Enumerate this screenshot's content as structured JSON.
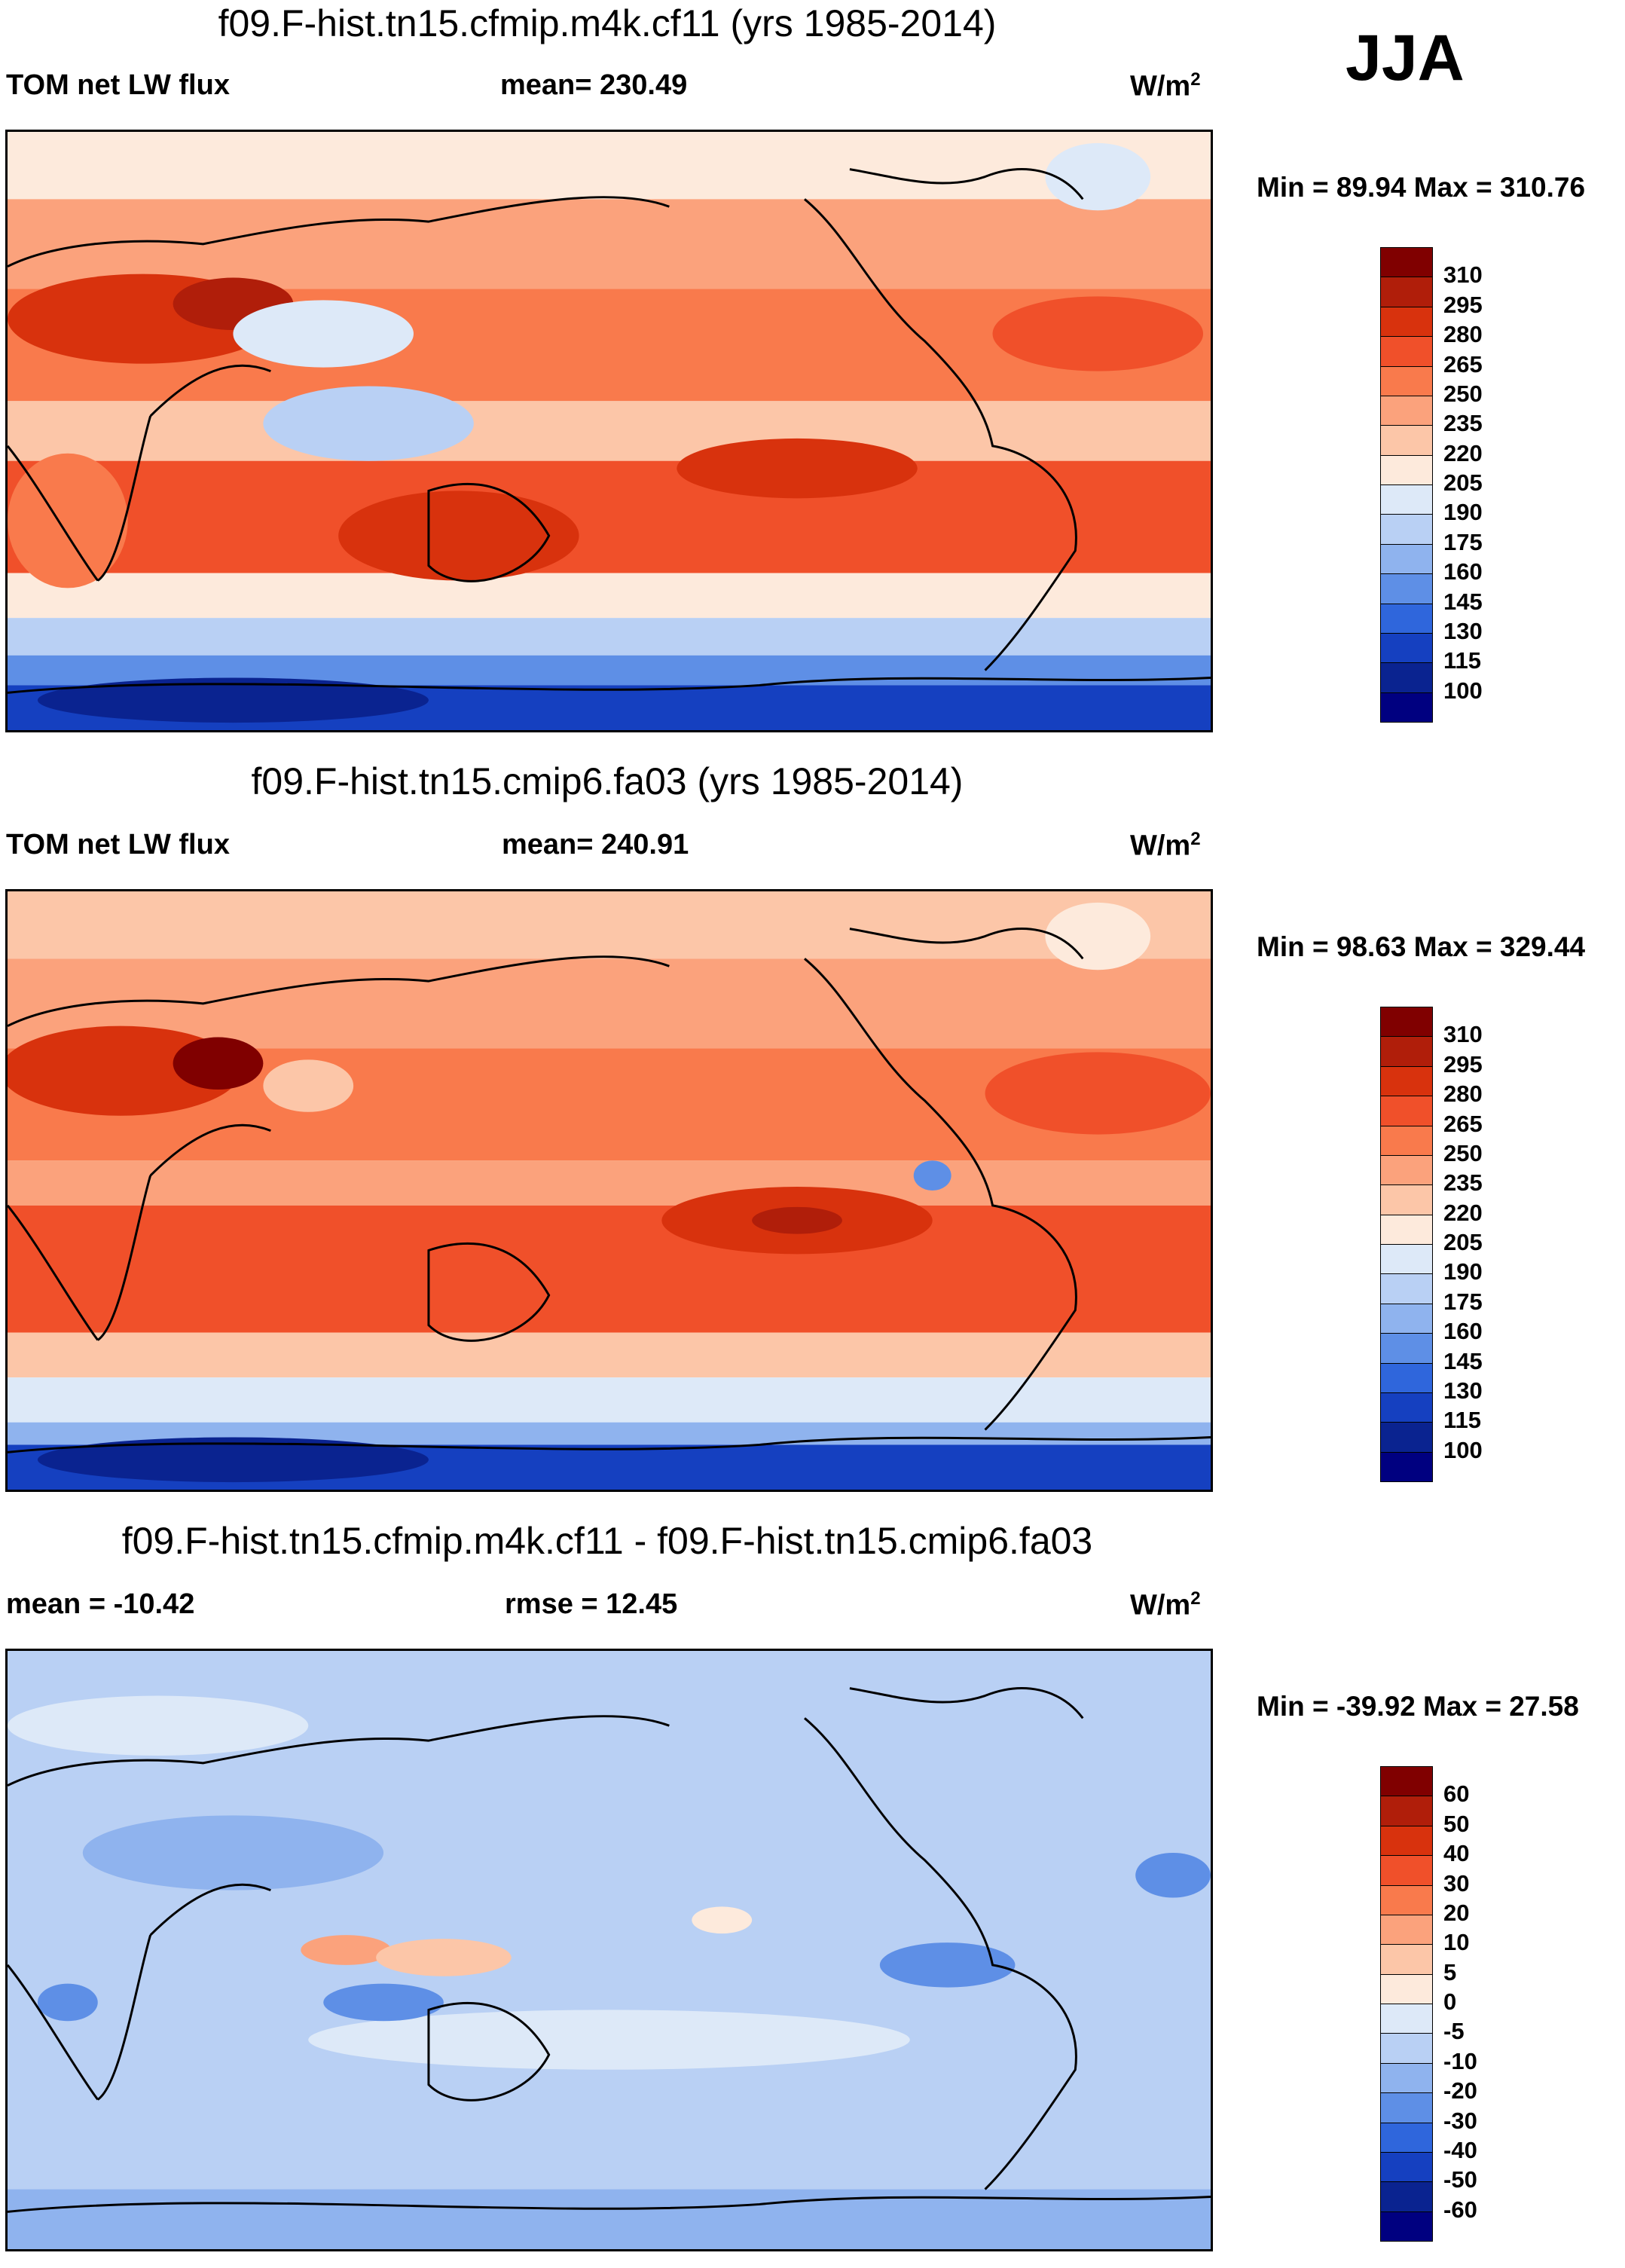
{
  "season": "JJA",
  "unit_main": "W/m",
  "unit_sup": "2",
  "panels": [
    {
      "title": "f09.F-hist.tn15.cfmip.m4k.cf11 (yrs 1985-2014)",
      "left_label": "TOM net LW flux",
      "center_label": "mean= 230.49",
      "minmax": "Min =  89.94 Max = 310.76",
      "map_kind": "abs1"
    },
    {
      "title": "f09.F-hist.tn15.cmip6.fa03 (yrs 1985-2014)",
      "left_label": "TOM net LW flux",
      "center_label": "mean= 240.91",
      "minmax": "Min =  98.63 Max = 329.44",
      "map_kind": "abs2"
    },
    {
      "title": "f09.F-hist.tn15.cfmip.m4k.cf11 - f09.F-hist.tn15.cmip6.fa03",
      "left_label": "mean = -10.42",
      "center_label": "rmse =  12.45",
      "minmax": "Min = -39.92 Max =  27.58",
      "map_kind": "diff"
    }
  ],
  "colorbar_abs": {
    "labels": [
      "310",
      "295",
      "280",
      "265",
      "250",
      "235",
      "220",
      "205",
      "190",
      "175",
      "160",
      "145",
      "130",
      "115",
      "100"
    ],
    "colors": [
      "#800000",
      "#b01e0a",
      "#d8320d",
      "#f0502a",
      "#f97a4c",
      "#fba27c",
      "#fcc6a8",
      "#fdeadc",
      "#dde9f8",
      "#b9d0f4",
      "#8fb3ee",
      "#5e8fe6",
      "#2f66dc",
      "#1540c0",
      "#0a2390",
      "#000080"
    ]
  },
  "colorbar_diff": {
    "labels": [
      "60",
      "50",
      "40",
      "30",
      "20",
      "10",
      "5",
      "0",
      "-5",
      "-10",
      "-20",
      "-30",
      "-40",
      "-50",
      "-60"
    ],
    "colors": [
      "#800000",
      "#b01e0a",
      "#d8320d",
      "#f0502a",
      "#f97a4c",
      "#fba27c",
      "#fcc6a8",
      "#fdeadc",
      "#dde9f8",
      "#b9d0f4",
      "#8fb3ee",
      "#5e8fe6",
      "#2f66dc",
      "#1540c0",
      "#0a2390",
      "#000080"
    ]
  }
}
